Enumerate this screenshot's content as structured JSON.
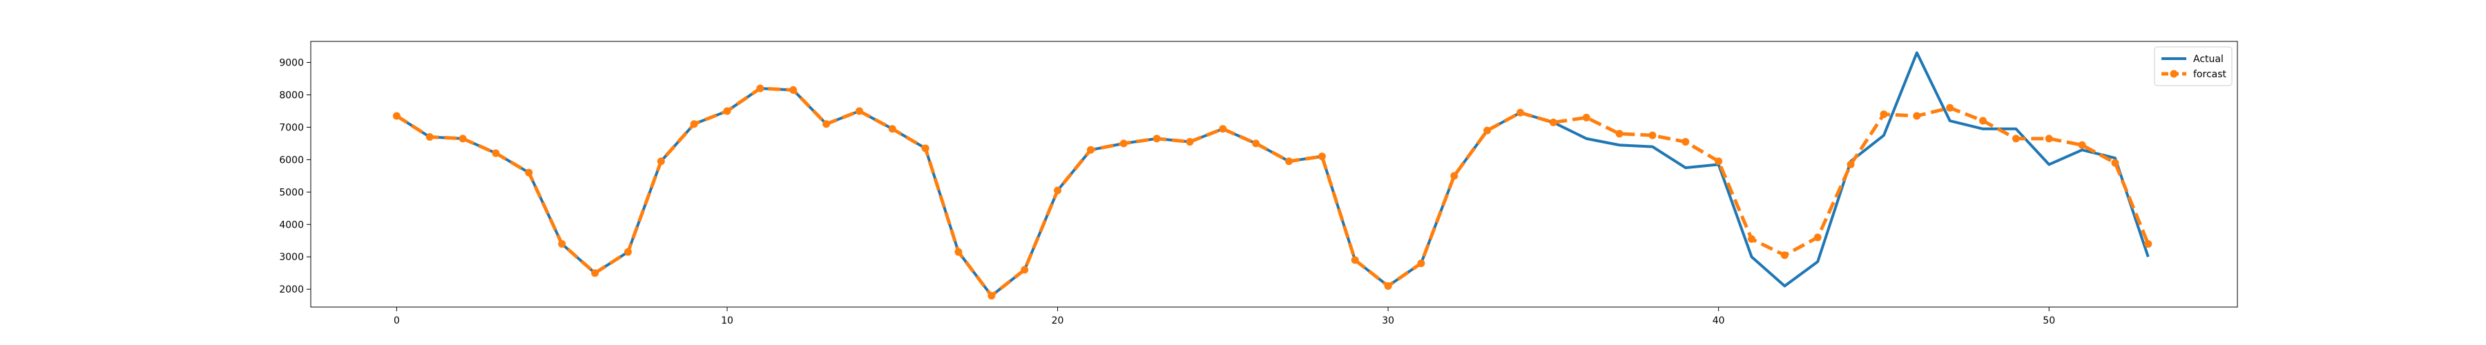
{
  "chart_data": {
    "type": "line",
    "title": "",
    "xlabel": "",
    "ylabel": "",
    "xlim": [
      -2.6,
      55.7
    ],
    "ylim": [
      1450,
      9650
    ],
    "x_ticks": [
      0,
      10,
      20,
      30,
      40,
      50
    ],
    "y_ticks": [
      2000,
      3000,
      4000,
      5000,
      6000,
      7000,
      8000,
      9000
    ],
    "grid": false,
    "legend_position": "top-right",
    "x": [
      0,
      1,
      2,
      3,
      4,
      5,
      6,
      7,
      8,
      9,
      10,
      11,
      12,
      13,
      14,
      15,
      16,
      17,
      18,
      19,
      20,
      21,
      22,
      23,
      24,
      25,
      26,
      27,
      28,
      29,
      30,
      31,
      32,
      33,
      34,
      35,
      36,
      37,
      38,
      39,
      40,
      41,
      42,
      43,
      44,
      45,
      46,
      47,
      48,
      49,
      50,
      51,
      52,
      53
    ],
    "series": [
      {
        "name": "Actual",
        "color": "#1f77b4",
        "style": "solid",
        "values": [
          7350,
          6700,
          6650,
          6200,
          5600,
          3400,
          2500,
          3150,
          5950,
          7100,
          7500,
          8200,
          8150,
          7100,
          7500,
          6950,
          6350,
          3150,
          1800,
          2600,
          5050,
          6300,
          6500,
          6650,
          6550,
          6950,
          6500,
          5950,
          6100,
          2900,
          2100,
          2800,
          5500,
          6900,
          7450,
          7150,
          6650,
          6450,
          6400,
          5750,
          5850,
          3000,
          2100,
          2850,
          5950,
          6750,
          9300,
          7200,
          6950,
          6950,
          5850,
          6300,
          6050,
          3000
        ]
      },
      {
        "name": "forcast",
        "color": "#ff7f0e",
        "style": "dashed",
        "marker": "circle",
        "values": [
          7350,
          6700,
          6650,
          6200,
          5600,
          3400,
          2500,
          3150,
          5950,
          7100,
          7500,
          8200,
          8150,
          7100,
          7500,
          6950,
          6350,
          3150,
          1800,
          2600,
          5050,
          6300,
          6500,
          6650,
          6550,
          6950,
          6500,
          5950,
          6100,
          2900,
          2100,
          2800,
          5500,
          6900,
          7450,
          7150,
          7300,
          6800,
          6750,
          6550,
          5950,
          3550,
          3050,
          3600,
          5850,
          7400,
          7350,
          7600,
          7200,
          6650,
          6650,
          6450,
          5900,
          3400
        ]
      }
    ]
  }
}
